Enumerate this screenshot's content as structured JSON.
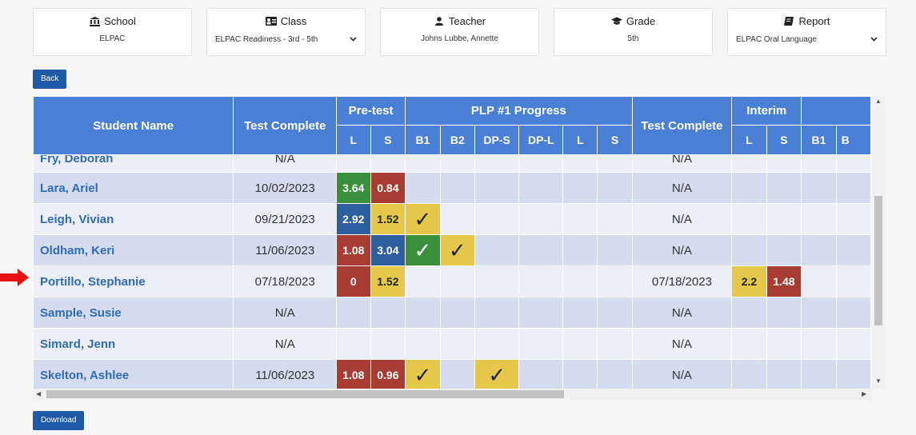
{
  "filters": {
    "school": {
      "title": "School",
      "value": "ELPAC",
      "icon": "bank-icon"
    },
    "class": {
      "title": "Class",
      "value": "ELPAC Readiness - 3rd - 5th",
      "icon": "id-card-icon"
    },
    "teacher": {
      "title": "Teacher",
      "value": "Johns Lubbe, Annette",
      "icon": "user-icon"
    },
    "grade": {
      "title": "Grade",
      "value": "5th",
      "icon": "graduation-cap-icon"
    },
    "report": {
      "title": "Report",
      "value": "ELPAC Oral Language",
      "icon": "book-icon"
    }
  },
  "buttons": {
    "back": "Back",
    "download": "Download"
  },
  "table": {
    "headers": {
      "student_name": "Student Name",
      "test_complete": "Test Complete",
      "pretest": "Pre-test",
      "plp": "PLP #1 Progress",
      "test_complete2": "Test Complete",
      "interim": "Interim"
    },
    "subheaders": {
      "pre_l": "L",
      "pre_s": "S",
      "b1": "B1",
      "b2": "B2",
      "dps": "DP-S",
      "dpl": "DP-L",
      "plp_l": "L",
      "plp_s": "S",
      "int_l": "L",
      "int_s": "S",
      "int_b1": "B1",
      "int_b": "B"
    },
    "rows": [
      {
        "name": "Fry, Deborah",
        "date": "N/A",
        "date2": "N/A"
      },
      {
        "name": "Lara, Ariel",
        "date": "10/02/2023",
        "pre_l": "3.64",
        "pre_s": "0.84",
        "date2": "N/A"
      },
      {
        "name": "Leigh, Vivian",
        "date": "09/21/2023",
        "pre_l": "2.92",
        "pre_s": "1.52",
        "date2": "N/A"
      },
      {
        "name": "Oldham, Keri",
        "date": "11/06/2023",
        "pre_l": "1.08",
        "pre_s": "3.04",
        "date2": "N/A"
      },
      {
        "name": "Portillo, Stephanie",
        "date": "07/18/2023",
        "pre_l": "0",
        "pre_s": "1.52",
        "date2": "07/18/2023",
        "int_l": "2.2",
        "int_s": "1.48"
      },
      {
        "name": "Sample, Susie",
        "date": "N/A",
        "date2": "N/A"
      },
      {
        "name": "Simard, Jenn",
        "date": "N/A",
        "date2": "N/A"
      },
      {
        "name": "Skelton, Ashlee",
        "date": "11/06/2023",
        "pre_l": "1.08",
        "pre_s": "0.96",
        "date2": "N/A"
      }
    ],
    "check_mark": "✓"
  },
  "colors": {
    "header": "#4a7fd6",
    "green": "#3a8f3a",
    "red": "#a83c33",
    "blue": "#2d5f9e",
    "yellow": "#e5c84a",
    "arrow": "#e8110f"
  }
}
